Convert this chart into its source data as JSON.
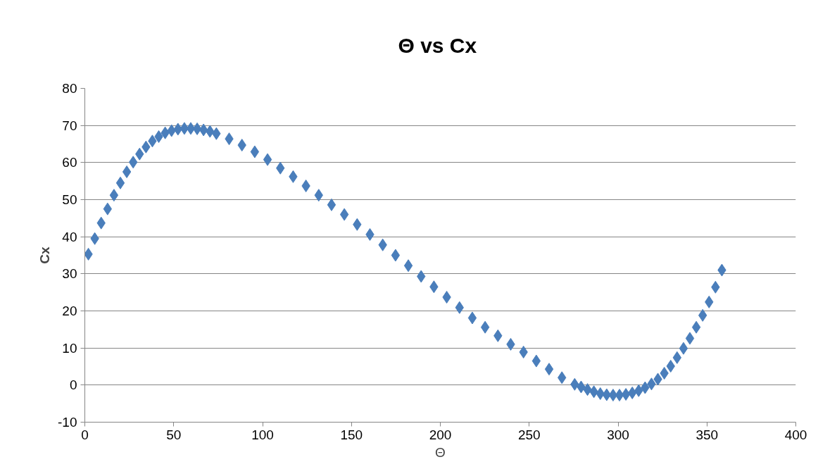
{
  "chart_data": {
    "type": "scatter",
    "title": "Θ  vs Cx",
    "xlabel": "Θ",
    "ylabel": "Cx",
    "xlim": [
      0,
      400
    ],
    "xticks": [
      0,
      50,
      100,
      150,
      200,
      250,
      300,
      350,
      400
    ],
    "ylim": [
      -10,
      80
    ],
    "yticks": [
      -10,
      0,
      10,
      20,
      30,
      40,
      50,
      60,
      70,
      80
    ],
    "grid": "y",
    "marker": "diamond",
    "series": [
      {
        "color": "#4a7ebb",
        "x": [
          2,
          5.6,
          9.2,
          12.8,
          16.4,
          20,
          23.6,
          27.2,
          30.8,
          34.4,
          38,
          41.6,
          45.2,
          48.8,
          52.4,
          56,
          59.6,
          63.2,
          66.8,
          70.4,
          74,
          81.2,
          88.4,
          95.6,
          102.8,
          110,
          117.2,
          124.4,
          131.6,
          138.8,
          146,
          153.2,
          160.4,
          167.6,
          174.8,
          182,
          189.2,
          196.4,
          203.6,
          210.8,
          218,
          225.2,
          232.4,
          239.6,
          246.8,
          254,
          261.2,
          268.4,
          275.6,
          279.2,
          282.8,
          286.4,
          290,
          293.6,
          297.2,
          300.8,
          304.4,
          308,
          311.6,
          315.2,
          318.8,
          322.4,
          326,
          329.6,
          333.2,
          336.8,
          340.4,
          344,
          347.6,
          351.2,
          354.8,
          358.4
        ],
        "values": [
          35.3,
          39.5,
          43.7,
          47.5,
          51.2,
          54.5,
          57.5,
          60.1,
          62.3,
          64.2,
          65.8,
          67,
          68,
          68.6,
          69,
          69.2,
          69.2,
          69.1,
          68.8,
          68.4,
          67.8,
          66.4,
          64.7,
          62.9,
          60.8,
          58.5,
          56.2,
          53.7,
          51.2,
          48.6,
          46,
          43.3,
          40.6,
          37.8,
          35,
          32.2,
          29.3,
          26.5,
          23.7,
          20.9,
          18.1,
          15.6,
          13.3,
          11,
          8.9,
          6.5,
          4.3,
          2,
          0.2,
          -0.5,
          -1.2,
          -1.8,
          -2.3,
          -2.6,
          -2.7,
          -2.7,
          -2.5,
          -2.1,
          -1.5,
          -0.7,
          0.3,
          1.6,
          3.2,
          5.1,
          7.4,
          9.9,
          12.6,
          15.6,
          18.8,
          22.4,
          26.4,
          31
        ]
      }
    ]
  }
}
